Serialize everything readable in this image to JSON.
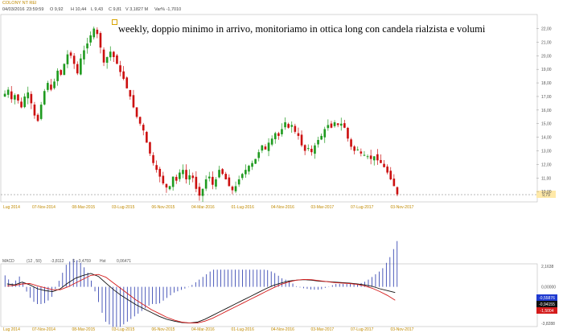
{
  "header": {
    "symbol": "COLONY NT REI",
    "date": "04/03/2016",
    "time": "23:59:59",
    "open": "O 9,92",
    "high": "H 10,44",
    "low": "L 9,43",
    "close": "C 9,81",
    "volume": "V 3,1827 M",
    "var": "Var% -1,7010"
  },
  "annotation": {
    "text": "weekly, doppio minimo in arrivo, monitoriamo in ottica long con candela rialzista e volumi"
  },
  "price_axis": {
    "ticks": [
      "22,00",
      "21,00",
      "20,00",
      "19,00",
      "18,00",
      "17,00",
      "16,00",
      "15,00",
      "14,00",
      "13,00",
      "12,00",
      "11,00",
      "10,00"
    ],
    "last_price": "9,79",
    "last_price_color": "#ffe9a8"
  },
  "date_axis": {
    "ticks": [
      "Lug 2014",
      "07-Nov-2014",
      "08-Mar-2015",
      "03-Lug-2015",
      "06-Nov-2015",
      "04-Mar-2016",
      "01-Lug-2016",
      "04-Nov-2016",
      "03-Mar-2017",
      "07-Lug-2017",
      "03-Nov-2017"
    ]
  },
  "macd": {
    "label": "MACD",
    "params": "(12 , 50)",
    "macd_value": "-3,8112",
    "signal_label": "S",
    "signal_value": "-3,4759",
    "hist_label": "Hst",
    "hist_value": "0,06471",
    "axis_ticks": [
      "2,1638",
      "0,00000",
      "-3,8288"
    ],
    "badge_values": [
      "-0,55876",
      "-0,94155",
      "-1,5004"
    ],
    "badge_colors": [
      "#1f3ad0",
      "#111111",
      "#d41a1a"
    ]
  },
  "colors": {
    "up": "#1f9a1f",
    "down": "#cc1010",
    "macd_line": "#111111",
    "signal_line": "#d41a1a",
    "histogram": "#2233aa"
  },
  "chart_data": {
    "type": "candlestick",
    "title": "",
    "x_axis_ticks": [
      "Lug 2014",
      "07-Nov-2014",
      "08-Mar-2015",
      "03-Lug-2015",
      "06-Nov-2015",
      "04-Mar-2016",
      "01-Lug-2016",
      "04-Nov-2016",
      "03-Mar-2017",
      "07-Lug-2017",
      "03-Nov-2017"
    ],
    "ylim": [
      9.3,
      22.8
    ],
    "close_path": [
      17.2,
      17.5,
      16.8,
      17.1,
      16.7,
      16.2,
      17.0,
      17.3,
      16.5,
      15.6,
      15.2,
      16.4,
      17.4,
      18.0,
      17.5,
      18.1,
      18.9,
      18.6,
      19.4,
      20.1,
      20.0,
      19.4,
      18.7,
      19.8,
      20.4,
      20.9,
      21.5,
      22.0,
      21.6,
      20.6,
      19.5,
      19.9,
      20.3,
      19.9,
      19.4,
      18.8,
      18.3,
      17.6,
      17.0,
      16.2,
      15.5,
      15.0,
      14.5,
      13.6,
      12.8,
      12.1,
      11.6,
      11.1,
      10.6,
      10.3,
      10.4,
      11.1,
      10.8,
      11.4,
      11.6,
      10.9,
      11.2,
      11.0,
      10.2,
      9.7,
      10.2,
      10.9,
      11.1,
      10.5,
      10.9,
      11.6,
      11.3,
      10.9,
      10.4,
      10.1,
      10.4,
      10.9,
      11.3,
      11.6,
      11.9,
      12.1,
      12.4,
      12.9,
      13.4,
      13.1,
      13.6,
      13.9,
      14.3,
      14.1,
      14.6,
      15.1,
      14.7,
      14.9,
      14.4,
      14.1,
      13.4,
      13.0,
      13.2,
      12.9,
      13.4,
      13.8,
      14.1,
      14.6,
      14.9,
      14.7,
      15.1,
      14.9,
      15.0,
      14.7,
      13.9,
      13.3,
      13.0,
      13.1,
      12.8,
      12.7,
      12.6,
      12.4,
      12.6,
      12.3,
      12.1,
      11.8,
      11.4,
      10.9,
      10.4,
      9.8
    ],
    "volume_note": "",
    "macd_series": {
      "macd": [
        0.3,
        0.2,
        0.5,
        0.2,
        -0.2,
        -0.4,
        -0.5,
        -0.2,
        0.4,
        0.9,
        1.2,
        1.4,
        1.1,
        0.4,
        -0.3,
        -0.9,
        -1.4,
        -1.9,
        -2.3,
        -2.7,
        -3.1,
        -3.4,
        -3.6,
        -3.75,
        -3.8,
        -3.7,
        -3.4,
        -3.0,
        -2.6,
        -2.2,
        -1.8,
        -1.4,
        -1.0,
        -0.6,
        -0.2,
        0.15,
        0.4,
        0.6,
        0.7,
        0.75,
        0.7,
        0.6,
        0.55,
        0.5,
        0.45,
        0.4,
        0.3,
        0.2,
        0.05,
        -0.2,
        -0.4,
        -0.6
      ],
      "signal": [
        0.1,
        0.15,
        0.3,
        0.35,
        0.1,
        -0.1,
        -0.3,
        -0.3,
        0.0,
        0.4,
        0.8,
        1.2,
        1.3,
        1.0,
        0.4,
        -0.2,
        -0.8,
        -1.4,
        -1.9,
        -2.4,
        -2.8,
        -3.2,
        -3.5,
        -3.7,
        -3.8,
        -3.8,
        -3.6,
        -3.3,
        -2.9,
        -2.5,
        -2.1,
        -1.7,
        -1.3,
        -0.9,
        -0.5,
        -0.1,
        0.25,
        0.5,
        0.7,
        0.78,
        0.75,
        0.65,
        0.55,
        0.45,
        0.4,
        0.35,
        0.25,
        0.1,
        -0.15,
        -0.5,
        -0.9,
        -1.4
      ]
    }
  }
}
